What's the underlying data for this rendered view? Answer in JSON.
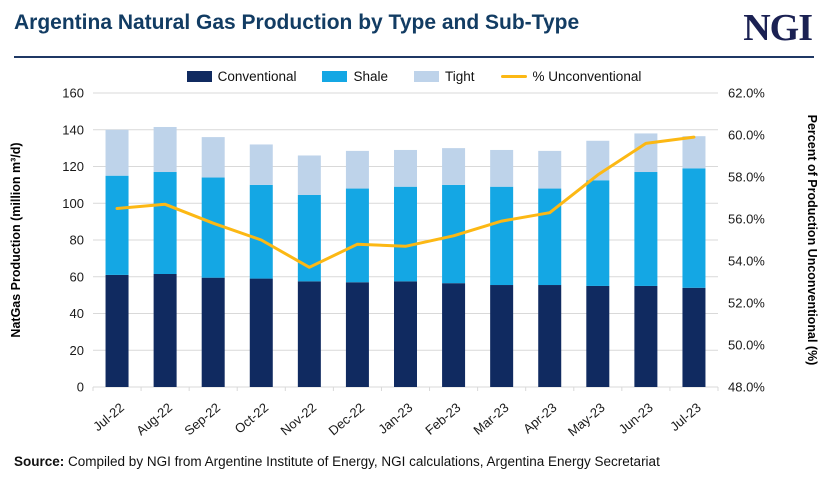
{
  "header": {
    "title": "Argentina Natural Gas Production by Type and Sub-Type",
    "logo": "NGI"
  },
  "legend": {
    "items": [
      {
        "label": "Conventional",
        "color": "#102a60",
        "type": "box"
      },
      {
        "label": "Shale",
        "color": "#14a7e4",
        "type": "box"
      },
      {
        "label": "Tight",
        "color": "#bed3ea",
        "type": "box"
      },
      {
        "label": "% Unconventional",
        "color": "#fcb814",
        "type": "line"
      }
    ]
  },
  "chart_data": {
    "type": "bar",
    "subtype": "stacked-bar-with-line",
    "categories": [
      "Jul-22",
      "Aug-22",
      "Sep-22",
      "Oct-22",
      "Nov-22",
      "Dec-22",
      "Jan-23",
      "Feb-23",
      "Mar-23",
      "Apr-23",
      "May-23",
      "Jun-23",
      "Jul-23"
    ],
    "series": [
      {
        "name": "Conventional",
        "type": "bar",
        "axis": "left",
        "color": "#102a60",
        "values": [
          61,
          61.5,
          59.5,
          59,
          57.5,
          57,
          57.5,
          56.5,
          55.5,
          55.5,
          55,
          55,
          54
        ]
      },
      {
        "name": "Shale",
        "type": "bar",
        "axis": "left",
        "color": "#14a7e4",
        "values": [
          54,
          55.5,
          54.5,
          51,
          47,
          51,
          51.5,
          53.5,
          53.5,
          52.5,
          57.5,
          62,
          65
        ]
      },
      {
        "name": "Tight",
        "type": "bar",
        "axis": "left",
        "color": "#bed3ea",
        "values": [
          25,
          24.5,
          22,
          22,
          21.5,
          20.5,
          20,
          20,
          20,
          20.5,
          21.5,
          21,
          17.5
        ]
      },
      {
        "name": "% Unconventional",
        "type": "line",
        "axis": "right",
        "color": "#fcb814",
        "values": [
          56.5,
          56.7,
          55.8,
          55.0,
          53.7,
          54.8,
          54.7,
          55.2,
          55.9,
          56.3,
          58.1,
          59.6,
          59.9
        ]
      }
    ],
    "left_axis": {
      "label": "NatGas Production (million m³/d)",
      "min": 0,
      "max": 160,
      "step": 20
    },
    "right_axis": {
      "label": "Percent of Production Unconventional (%)",
      "min": 48,
      "max": 62,
      "step": 2,
      "format": "percent1"
    },
    "grid": true,
    "grid_color": "#d9d9d9",
    "legend_position": "top"
  },
  "source": {
    "prefix": "Source:",
    "text": "Compiled by NGI from Argentine Institute of Energy, NGI calculations, Argentina Energy Secretariat"
  }
}
